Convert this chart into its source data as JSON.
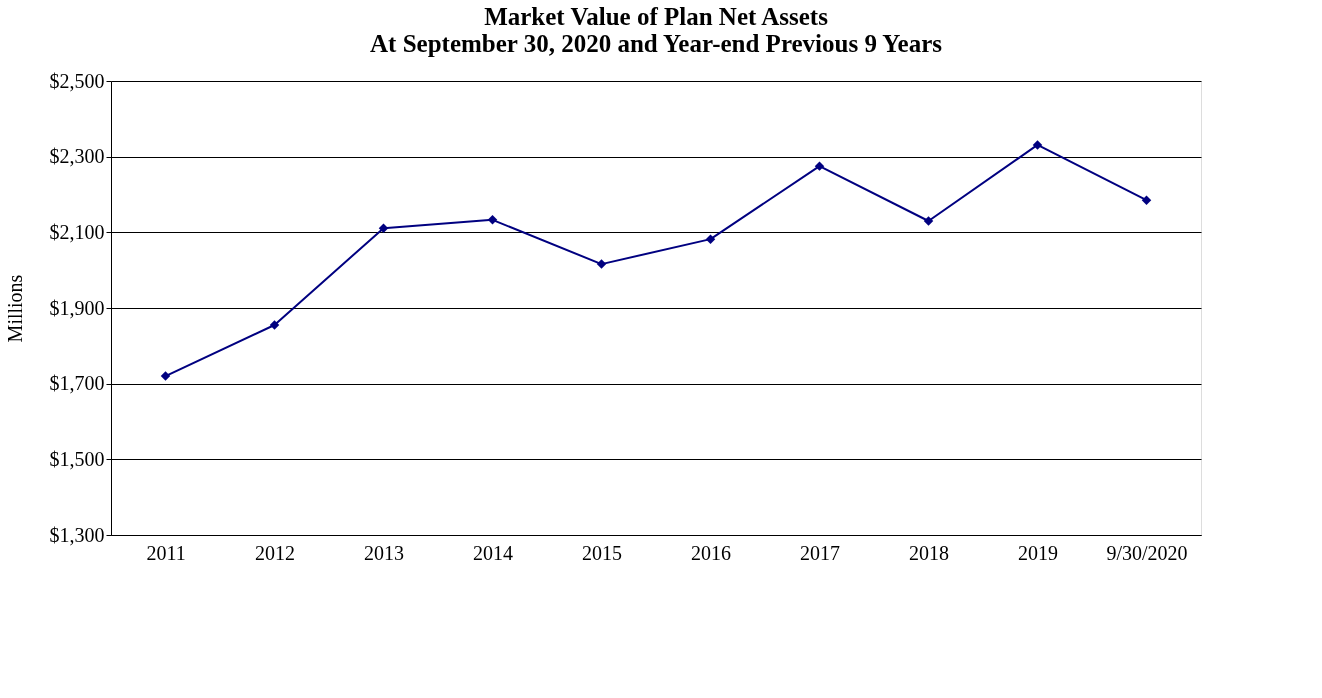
{
  "chart_data": {
    "type": "line",
    "title": [
      "Market Value of Plan Net Assets",
      "At September 30, 2020 and Year-end Previous 9 Years"
    ],
    "ylabel": "Millions",
    "categories": [
      "2011",
      "2012",
      "2013",
      "2014",
      "2015",
      "2016",
      "2017",
      "2018",
      "2019",
      "9/30/2020"
    ],
    "series": [
      {
        "color": "#000080",
        "values": [
          1720,
          1855,
          2111,
          2133,
          2016,
          2082,
          2275,
          2130,
          2331,
          2185
        ]
      }
    ],
    "ylim": [
      1300,
      2500
    ],
    "yticks": [
      {
        "value": 1300,
        "label": "$1,300"
      },
      {
        "value": 1500,
        "label": "$1,500"
      },
      {
        "value": 1700,
        "label": "$1,700"
      },
      {
        "value": 1900,
        "label": "$1,900"
      },
      {
        "value": 2100,
        "label": "$2,100"
      },
      {
        "value": 2300,
        "label": "$2,300"
      },
      {
        "value": 2500,
        "label": "$2,500"
      }
    ],
    "grid": "y",
    "marker": "diamond",
    "line_style": "solid",
    "legend": false
  }
}
